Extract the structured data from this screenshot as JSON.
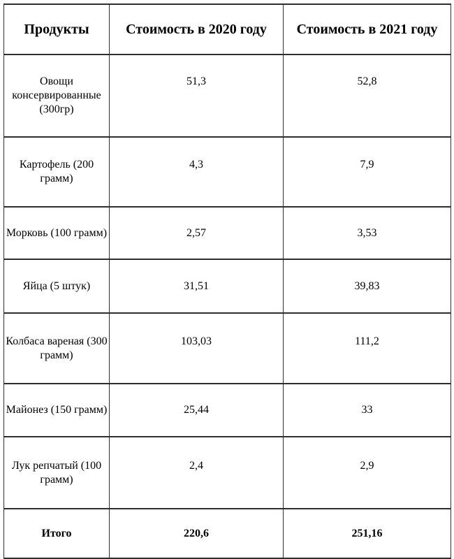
{
  "table": {
    "columns": [
      {
        "label": "Продукты"
      },
      {
        "label": "Стоимость в 2020 году"
      },
      {
        "label": "Стоимость в 2021 году"
      }
    ],
    "rows": [
      {
        "product": "Овощи консервированные (300гр)",
        "cost_2020": "51,3",
        "cost_2021": "52,8"
      },
      {
        "product": "Картофель (200 грамм)",
        "cost_2020": "4,3",
        "cost_2021": "7,9"
      },
      {
        "product": "Морковь (100 грамм)",
        "cost_2020": "2,57",
        "cost_2021": "3,53"
      },
      {
        "product": "Яйца (5 штук)",
        "cost_2020": "31,51",
        "cost_2021": "39,83"
      },
      {
        "product": "Колбаса вареная (300 грамм)",
        "cost_2020": "103,03",
        "cost_2021": "111,2"
      },
      {
        "product": "Майонез (150 грамм)",
        "cost_2020": "25,44",
        "cost_2021": "33"
      },
      {
        "product": "Лук репчатый (100 грамм)",
        "cost_2020": "2,4",
        "cost_2021": "2,9"
      }
    ],
    "total_row": {
      "product": "Итого",
      "cost_2020": "220,6",
      "cost_2021": "251,16"
    }
  }
}
